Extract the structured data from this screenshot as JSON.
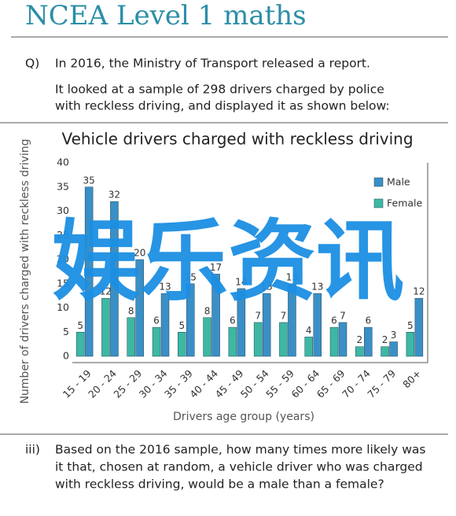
{
  "header": {
    "title": "NCEA Level 1 maths"
  },
  "question": {
    "label": "Q)",
    "lines": [
      "In 2016, the Ministry of Transport released a report.",
      "It looked at a sample of 298 drivers charged by police",
      "with reckless driving, and displayed it as shown below:"
    ]
  },
  "chart_data": {
    "type": "bar",
    "title": "Vehicle drivers charged with reckless driving",
    "x_label": "Drivers age group (years)",
    "y_label": "Number of drivers charged with reckless driving",
    "categories": [
      "15 - 19",
      "20 - 24",
      "25 - 29",
      "30 - 34",
      "35 - 39",
      "40 - 44",
      "45 - 49",
      "50 - 54",
      "55 - 59",
      "60 - 64",
      "65 - 69",
      "70 - 74",
      "75 - 79",
      "80+"
    ],
    "series": [
      {
        "name": "Male",
        "color": "#3a8fc6",
        "values": [
          35,
          32,
          20,
          13,
          15,
          17,
          14,
          13,
          15,
          13,
          7,
          6,
          3,
          12
        ]
      },
      {
        "name": "Female",
        "color": "#3db8a4",
        "values": [
          5,
          12,
          8,
          6,
          5,
          8,
          6,
          7,
          7,
          4,
          6,
          2,
          2,
          5
        ]
      }
    ],
    "ylim": [
      0,
      40
    ],
    "yticks": [
      0,
      5,
      10,
      15,
      20,
      25,
      30,
      35,
      40
    ],
    "grid": false,
    "legend": "top-right"
  },
  "part_iii": {
    "label": "iii)",
    "lines": [
      "Based on the 2016 sample, how many times more likely was",
      "it that, chosen at random, a vehicle driver who was charged",
      "with reckless driving, would be a male than a female?"
    ]
  },
  "watermark": "娱乐资讯"
}
